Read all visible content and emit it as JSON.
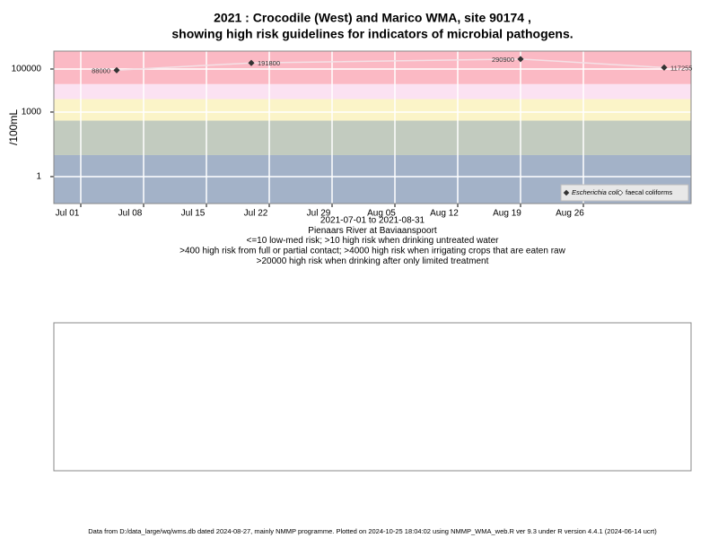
{
  "chart_data": {
    "type": "line",
    "title": "2021 : Crocodile (West) and Marico WMA, site 90174 ,",
    "subtitle": "showing high risk guidelines for indicators of microbial pathogens.",
    "y_label": "/100mL",
    "log_scale_y": true,
    "x": [
      "2021-07-05",
      "2021-07-20",
      "2021-08-19",
      "2021-09-04"
    ],
    "series": [
      {
        "name": "Escherichia coli",
        "color": "#333333",
        "line_color": "#f4e1e6",
        "values": [
          88000,
          191800,
          290900,
          117255
        ]
      },
      {
        "name": "faecal coliforms",
        "color": "#ffffff",
        "values": [
          null,
          null,
          null,
          null
        ]
      }
    ],
    "xlim": [
      "2021-06-28",
      "2021-09-07"
    ],
    "xticks": [
      {
        "value": "2021-07-01",
        "label": "Jul 01"
      },
      {
        "value": "2021-07-08",
        "label": "Jul 08"
      },
      {
        "value": "2021-07-15",
        "label": "Jul 15"
      },
      {
        "value": "2021-07-22",
        "label": "Jul 22"
      },
      {
        "value": "2021-07-29",
        "label": "Jul 29"
      },
      {
        "value": "2021-08-05",
        "label": "Aug 05"
      },
      {
        "value": "2021-08-12",
        "label": "Aug 12"
      },
      {
        "value": "2021-08-19",
        "label": "Aug 19"
      },
      {
        "value": "2021-08-26",
        "label": "Aug 26"
      }
    ],
    "ylim": [
      0.056,
      680000
    ],
    "yticks": [
      1,
      1000,
      100000
    ],
    "risk_bands": [
      {
        "from": 0.056,
        "to": 10,
        "color": "#a3b2c8"
      },
      {
        "from": 10,
        "to": 400,
        "color": "#c2cbbf"
      },
      {
        "from": 400,
        "to": 4000,
        "color": "#fbf4c8"
      },
      {
        "from": 4000,
        "to": 20000,
        "color": "#fbe2f2"
      },
      {
        "from": 20000,
        "to": 680000,
        "color": "#fbb9c4"
      }
    ],
    "grid": true,
    "legend_position": "bottom-right",
    "notes": [
      "2021-07-01 to 2021-08-31",
      "Pienaars River at Baviaanspoort",
      "<=10 low-med risk; >10 high risk when drinking untreated water",
      ">400 high risk from full or partial contact; >4000 high risk when irrigating crops that are eaten raw",
      ">20000 high risk when drinking after only limited treatment"
    ],
    "footer": "Data from D:/data_large/wq/wms.db dated 2024-08-27, mainly NMMP programme. Plotted on 2024-10-25 18:04:02 using NMMP_WMA_web.R ver 9.3 under R version 4.4.1 (2024-06-14 ucrt)"
  }
}
